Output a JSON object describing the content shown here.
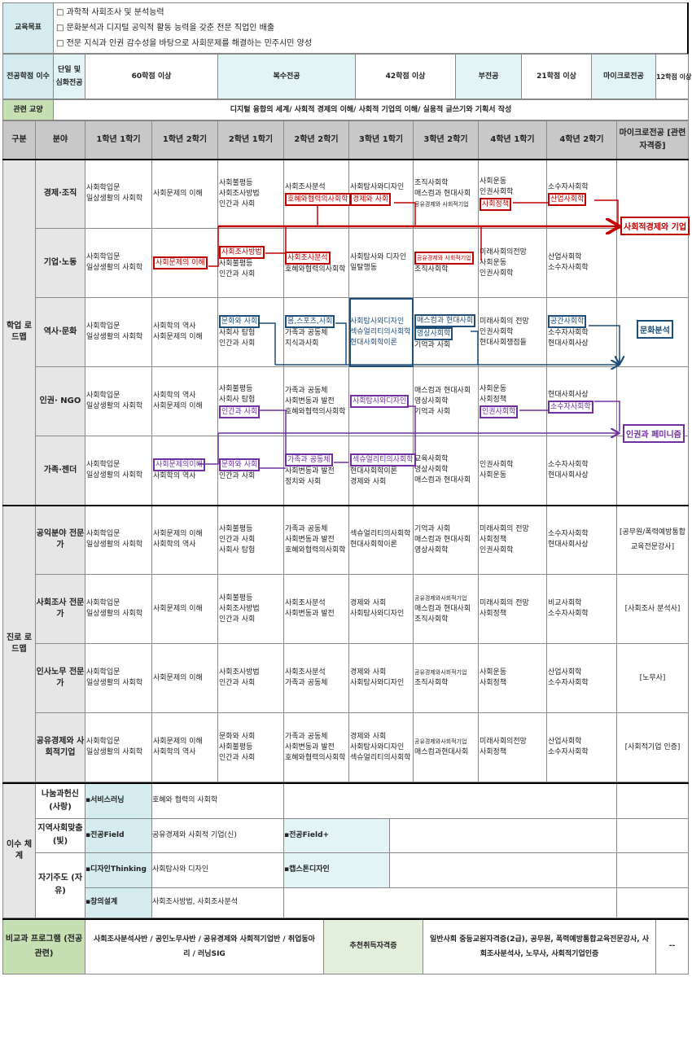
{
  "goals": {
    "label": "교육목표",
    "items": [
      "□ 과학적 사회조사 및 분석능력",
      "□ 문화분석과 디지털 공익적 활동 능력을 갖춘 전문 직업인 배출",
      "□ 전문 지식과 인권 감수성을 바탕으로 사회문제를 해결하는 민주시민 양성"
    ]
  },
  "credits": {
    "label": "전공학점 이수",
    "single_label": "단일 및 심화전공",
    "single_value": "60학점 이상",
    "double_label": "복수전공",
    "double_value": "42학점 이상",
    "minor_label": "부전공",
    "minor_value": "21학점 이상",
    "micro_label": "마이크로전공",
    "micro_value": "12학점 이상"
  },
  "liberal": {
    "label": "관련 교양",
    "value": "디지털 융합의 세계/ 사회적 경제의 이해/ 사회적 기업의 이해/ 실용적 글쓰기와 기획서 작성"
  },
  "header": [
    "구분",
    "분야",
    "1학년 1학기",
    "1학년 2학기",
    "2학년 1학기",
    "2학년 2학기",
    "3학년 1학기",
    "3학년 2학기",
    "4학년 1학기",
    "4학년 2학기",
    "마이크로전공 [관련 자격증]"
  ],
  "colors": {
    "red": "#c00000",
    "blue": "#1f4e79",
    "purple": "#7030a0"
  },
  "academic": {
    "label": "학업 로드맵",
    "rows": [
      {
        "label": "경제·조직",
        "cells": [
          [
            "사회학입문",
            "일상생활의 사회학"
          ],
          [
            "사회문제의 이해"
          ],
          [
            "사회불평등",
            "사회조사방법",
            "인간과 사회"
          ],
          [
            "사회조사분석",
            {
              "t": "호혜와협력의사회학",
              "hl": "red"
            }
          ],
          [
            "사회탐사와디자인",
            {
              "t": "경제와 사회",
              "hl": "red"
            }
          ],
          [
            "조직사회학",
            "매스컴과 현대사회",
            {
              "t": "공유경제와 사회적기업",
              "small": true
            }
          ],
          [
            "사회운동",
            "인권사회학",
            {
              "t": "사회정책",
              "hl": "red"
            }
          ],
          [
            "소수자사회학",
            {
              "t": "산업사회학",
              "hl": "red"
            }
          ],
          []
        ]
      },
      {
        "label": "기업·노동",
        "cells": [
          [
            "사회학입문",
            "일상생활의 사회학"
          ],
          [
            {
              "t": "사회문제의 이해",
              "hl": "red"
            }
          ],
          [
            {
              "t": "사회조사방법",
              "hl": "red"
            },
            "사회불평등",
            "인간과 사회"
          ],
          [
            {
              "t": "사회조사분석",
              "hl": "red"
            },
            "호혜와협력의사회학"
          ],
          [
            "사회탐사와 디자인",
            "일탈행동"
          ],
          [
            {
              "t": "공유경제와 사회적기업",
              "hl": "red",
              "small": true
            },
            "조직사회학"
          ],
          [
            "미래사회의전망",
            "사회운동",
            "인권사회학"
          ],
          [
            "산업사회학",
            "소수자사회학"
          ],
          []
        ]
      },
      {
        "label": "역사·문화",
        "cells": [
          [
            "사회학입문",
            "일상생활의 사회학"
          ],
          [
            "사회학의 역사",
            "사회문제의 이해"
          ],
          [
            {
              "t": "문화와 사회",
              "hl": "blue"
            },
            "사회사 탐험",
            "인간과 사회"
          ],
          [
            {
              "t": "몸,스포츠,사회",
              "hl": "blue"
            },
            "가족과 공동체",
            "지식과사회"
          ],
          {
            "box": "blue",
            "lines": [
              "사회탐사와디자인",
              "섹슈얼리티의사회학",
              "현대사회학이론"
            ]
          },
          [
            {
              "t": "매스컴과 현대사회",
              "hl": "blue"
            },
            {
              "t": "영상사회학",
              "hl": "blue"
            },
            "기억과 사회"
          ],
          [
            "미래사회의 전망",
            "인권사회학",
            "현대사회쟁점들"
          ],
          [
            {
              "t": "공간사회학",
              "hl": "blue"
            },
            "소수자사회학",
            "현대사회사상"
          ],
          []
        ]
      },
      {
        "label": "인권· NGO",
        "cells": [
          [
            "사회학입문",
            "일상생활의 사회학"
          ],
          [
            "사회학의 역사",
            "사회문제의 이해"
          ],
          [
            "사회불평등",
            "사회사 탐험",
            {
              "t": "인간과 사회",
              "hl": "purple"
            }
          ],
          [
            "가족과 공동체",
            "사회변동과 발전",
            "호혜와협력의사회학"
          ],
          [
            {
              "t": "사회탐사와디자인",
              "hl": "purple"
            }
          ],
          [
            "매스컴과 현대사회",
            "영상사회학",
            "기억과 사회"
          ],
          [
            "사회운동",
            "사회정책",
            {
              "t": "인권사회학",
              "hl": "purple"
            }
          ],
          [
            "현대사회사상",
            {
              "t": "소수자사회학",
              "hl": "purple"
            }
          ],
          []
        ]
      },
      {
        "label": "가족·젠더",
        "cells": [
          [
            "사회학입문",
            "일상생활의 사회학"
          ],
          [
            {
              "t": "사회문제의이해",
              "hl": "purple"
            },
            "사회학의 역사"
          ],
          [
            {
              "t": "문화와 사회",
              "hl": "purple"
            },
            "인간과 사회"
          ],
          [
            {
              "t": "가족과 공동체",
              "hl": "purple"
            },
            "사회변동과 발전",
            "정치와 사회"
          ],
          [
            {
              "t": "섹슈얼리티의사회학",
              "hl": "purple"
            },
            "현대사회학이론",
            "경제와 사회"
          ],
          [
            "교육사회학",
            "영상사회학",
            "매스컴과 현대사회"
          ],
          [
            "인권사회학",
            "사회운동"
          ],
          [
            "소수자사회학",
            "현대사회사상"
          ],
          []
        ]
      }
    ],
    "targets": {
      "red": "사회적경제와 기업",
      "blue": "문화분석",
      "purple": "인권과 페미니즘"
    }
  },
  "career": {
    "label": "진로 로드맵",
    "rows": [
      {
        "label": "공익분야 전문가",
        "cells": [
          [
            "사회학입문",
            "일상생활의 사회학"
          ],
          [
            "사회문제의 이해",
            "사회학의 역사"
          ],
          [
            "사회불평등",
            "인간과 사회",
            "사회사 탐험"
          ],
          [
            "가족과 공동체",
            "사회변동과 발전",
            "호혜와협력의사회학"
          ],
          [
            "섹슈얼리티의사회학",
            "현대사회학이론"
          ],
          [
            "기억과 사회",
            "매스컴과 현대사회",
            "영상사회학"
          ],
          [
            "미래사회의 전망",
            "사회정책",
            "인권사회학"
          ],
          [
            "소수자사회학",
            "현대사회사상"
          ],
          "[공무원/폭력예방통합 교육전문강사]"
        ]
      },
      {
        "label": "사회조사 전문가",
        "cells": [
          [
            "사회학입문",
            "일상생활의 사회학"
          ],
          [
            "사회문제의 이해"
          ],
          [
            "사회불평등",
            "사회조사방법",
            "인간과 사회"
          ],
          [
            "사회조사분석",
            "사회변동과 발전"
          ],
          [
            "경제와 사회",
            "사회탐사와디자인"
          ],
          [
            {
              "t": "공유경제와사회적기업",
              "small": true
            },
            "매스컴과 현대사회",
            "조직사회학"
          ],
          [
            "미래사회의 전망",
            "사회정책"
          ],
          [
            "비교사회학",
            "소수자사회학"
          ],
          "[사회조사 분석사]"
        ]
      },
      {
        "label": "인사노무 전문가",
        "cells": [
          [
            "사회학입문",
            "일상생활의 사회학"
          ],
          [
            "사회문제의 이해"
          ],
          [
            "사회조사방법",
            "인간과 사회"
          ],
          [
            "사회조사분석",
            "가족과 공동체"
          ],
          [
            "경제와 사회",
            "사회탐사와디자인"
          ],
          [
            {
              "t": "공유경제와사회적기업",
              "small": true
            },
            "조직사회학"
          ],
          [
            "사회운동",
            "사회정책"
          ],
          [
            "산업사회학",
            "소수자사회학"
          ],
          "[노무사]"
        ]
      },
      {
        "label": "공유경제와 사회적기업",
        "cells": [
          [
            "사회학입문",
            "일상생활의 사회학"
          ],
          [
            "사회문제의 이해",
            "사회학의 역사"
          ],
          [
            "문화와 사회",
            "사회불평등",
            "인간과 사회"
          ],
          [
            "가족과 공동체",
            "사회변동과 발전",
            "호혜와협력의사회학"
          ],
          [
            "경제와 사회",
            "사회탐사와디자인",
            "섹슈얼리티의사회학"
          ],
          [
            {
              "t": "공유경제와사회적기업",
              "small": true
            },
            "매스컴과현대사회"
          ],
          [
            "미래사회의전망",
            "사회정책"
          ],
          [
            "산업사회학",
            "소수자사회학"
          ],
          "[사회적기업 인증]"
        ]
      }
    ]
  },
  "completion": {
    "label": "이수 체계",
    "rows": [
      {
        "label": "나눔과헌신 (사랑)",
        "item": "▪서비스러닝",
        "course": "호혜와 협력의 사회학"
      },
      {
        "label": "지역사회맞춤 (빛)",
        "item": "▪전공Field",
        "course": "공유경제와 사회적 기업(신)",
        "item2": "▪전공Field+"
      },
      {
        "label": "자기주도 (자유)",
        "item": "▪디자인Thinking",
        "course": "사회탐사와 디자인",
        "item2": "▪캡스톤디자인"
      },
      {
        "item": "▪창의설계",
        "course": "사회조사방법, 사회조사분석"
      }
    ]
  },
  "footer": {
    "program_label": "비교과 프로그램 (전공 관련)",
    "programs": "사회조사분석사반 / 공인노무사반 / 공유경제와 사회적기업반 / 취업동아리 / 러닝SIG",
    "cert_label": "추천취득자격증",
    "certs": "일반사회 중등교원자격증(2급), 공무원, 폭력예방통합교육전문강사, 사회조사분석사, 노무사, 사회적기업인증",
    "extra": "--"
  }
}
